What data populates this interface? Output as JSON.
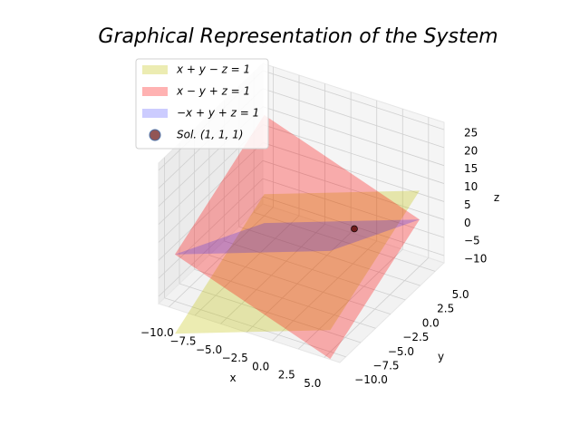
{
  "chart_data": {
    "type": "planes3d",
    "title": "Graphical Representation of the System",
    "xlabel": "x",
    "ylabel": "y",
    "zlabel": "z",
    "axis_label_color": "#0000ff",
    "xlim": [
      -11,
      6.5
    ],
    "ylim": [
      -11,
      6.5
    ],
    "zlim": [
      -12,
      27
    ],
    "xticks": [
      {
        "value": -10,
        "label": "−10.0"
      },
      {
        "value": -7.5,
        "label": "−7.5"
      },
      {
        "value": -5,
        "label": "−5.0"
      },
      {
        "value": -2.5,
        "label": "−2.5"
      },
      {
        "value": 0,
        "label": "0.0"
      },
      {
        "value": 2.5,
        "label": "2.5"
      },
      {
        "value": 5,
        "label": "5.0"
      }
    ],
    "yticks": [
      {
        "value": -10,
        "label": "−10.0"
      },
      {
        "value": -7.5,
        "label": "−7.5"
      },
      {
        "value": -5,
        "label": "−5.0"
      },
      {
        "value": -2.5,
        "label": "−2.5"
      },
      {
        "value": 0,
        "label": "0.0"
      },
      {
        "value": 2.5,
        "label": "2.5"
      },
      {
        "value": 5,
        "label": "5.0"
      }
    ],
    "zticks": [
      {
        "value": -10,
        "label": "−10"
      },
      {
        "value": -5,
        "label": "−5"
      },
      0,
      5,
      10,
      15,
      20,
      25
    ],
    "grid": true,
    "legend": "upper left",
    "plane_domain": [
      -10,
      5
    ],
    "series": [
      {
        "name": "x + y − z = 1",
        "coefficients": [
          1,
          1,
          -1,
          1
        ],
        "color": "#bfbf00",
        "alpha": 0.3
      },
      {
        "name": "x − y + z = 1",
        "coefficients": [
          1,
          -1,
          1,
          1
        ],
        "color": "#ff0000",
        "alpha": 0.3
      },
      {
        "name": "−x + y + z = 1",
        "coefficients": [
          -1,
          1,
          1,
          1
        ],
        "color": "#0000ff",
        "alpha": 0.2
      }
    ],
    "point": {
      "name": "Sol.  (1, 1, 1)",
      "x": 1,
      "y": 1,
      "z": 1,
      "color": "#6e1c1c",
      "edge": "#4a6fa5"
    }
  }
}
